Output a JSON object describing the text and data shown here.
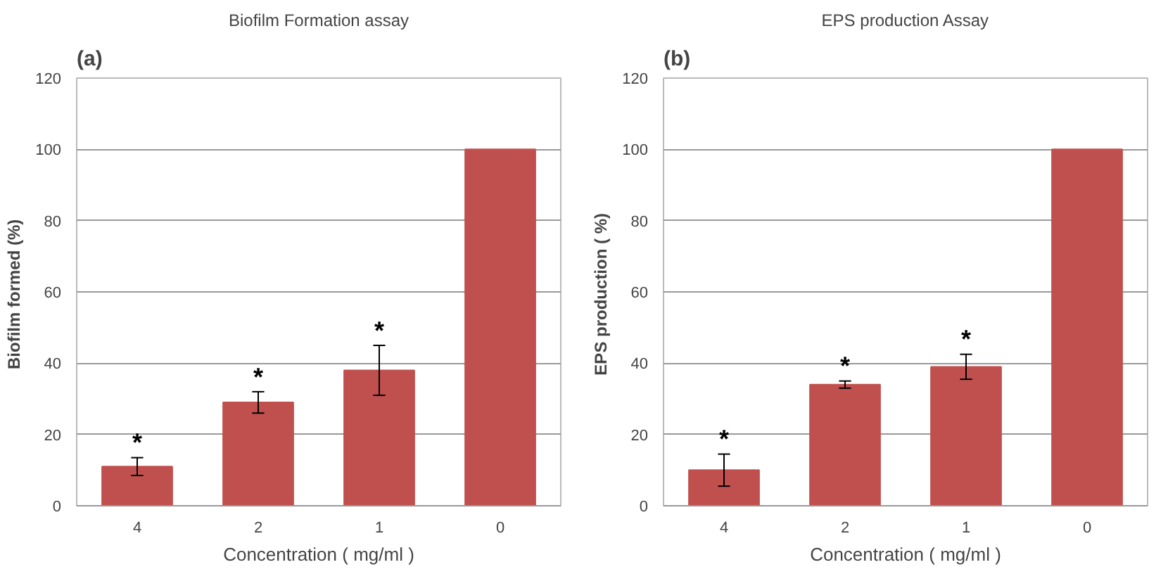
{
  "chart_data": [
    {
      "type": "bar",
      "title": "Biofilm Formation assay",
      "xlabel": "Concentration ( mg/ml )",
      "ylabel": "Biofilm formed  (%)",
      "categories": [
        "4",
        "2",
        "1",
        "0"
      ],
      "values": [
        11,
        29,
        38,
        100
      ],
      "errors": [
        2.5,
        3,
        7,
        null
      ],
      "color": "#c0504d",
      "ylim": [
        0,
        120
      ],
      "yticks": [
        0,
        20,
        40,
        60,
        80,
        100,
        120
      ],
      "grid": "y",
      "annotations": [
        "(a)",
        "*",
        "*",
        "*"
      ]
    },
    {
      "type": "bar",
      "title": "EPS production Assay",
      "xlabel": "Concentration ( mg/ml )",
      "ylabel": "EPS production  ( %)",
      "categories": [
        "4",
        "2",
        "1",
        "0"
      ],
      "values": [
        10,
        34,
        39,
        100
      ],
      "errors": [
        4.5,
        1,
        3.5,
        null
      ],
      "color": "#c0504d",
      "ylim": [
        0,
        120
      ],
      "yticks": [
        0,
        20,
        40,
        60,
        80,
        100,
        120
      ],
      "grid": "y",
      "annotations": [
        "(b)",
        "*",
        "*",
        "*"
      ]
    }
  ]
}
